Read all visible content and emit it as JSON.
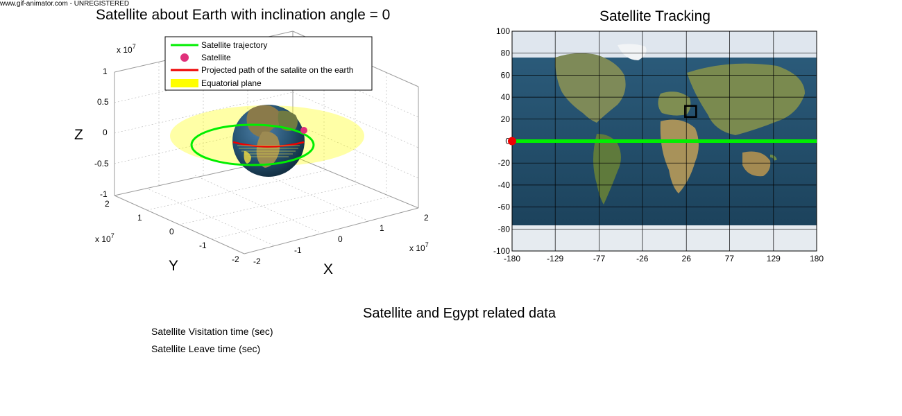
{
  "watermark": "www.gif-animator.com - UNREGISTERED",
  "plot3d": {
    "title": "Satellite about Earth with inclination angle = 0",
    "x_label": "X",
    "y_label": "Y",
    "z_label": "Z",
    "z_ticks": [
      "1",
      "0.5",
      "0",
      "-0.5",
      "-1"
    ],
    "y_ticks": [
      "2",
      "1",
      "0",
      "-1",
      "-2"
    ],
    "x_ticks": [
      "-2",
      "-1",
      "0",
      "1",
      "2"
    ],
    "exp_base": "x 10",
    "exp_power": "7",
    "legend": [
      {
        "label": "Satellite trajectory",
        "color": "#00ee00"
      },
      {
        "label": "Satellite",
        "color": "#e0307a"
      },
      {
        "label": "Projected path of the satalite on the earth",
        "color": "#ee0000"
      },
      {
        "label": "Equatorial plane",
        "color": "#ffff00"
      }
    ]
  },
  "tracking": {
    "title": "Satellite Tracking",
    "y_ticks": [
      "100",
      "80",
      "60",
      "40",
      "20",
      "0",
      "-20",
      "-40",
      "-60",
      "-80",
      "-100"
    ],
    "x_ticks": [
      "-180",
      "-129",
      "-77",
      "-26",
      "26",
      "77",
      "129",
      "180"
    ]
  },
  "chart_data": {
    "type": "line",
    "title": "Satellite Tracking",
    "xlim": [
      -180,
      180
    ],
    "ylim": [
      -100,
      100
    ],
    "grid": true,
    "series": [
      {
        "x": [
          -180,
          180
        ],
        "values": [
          0,
          0
        ],
        "color": "#00ee00"
      }
    ],
    "satellite_point": {
      "x": -180,
      "y": 0,
      "color": "#ee0000"
    },
    "target_marker": {
      "x": 31,
      "y": 27
    }
  },
  "data_panel": {
    "title": "Satellite and Egypt related data",
    "rows": [
      "Satellite Visitation time (sec)",
      "Satellite Leave time (sec)"
    ]
  }
}
